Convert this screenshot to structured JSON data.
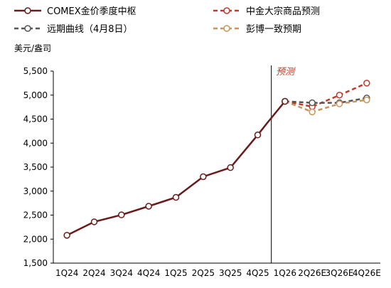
{
  "chart_data": {
    "type": "line",
    "ylabel": "美元/盎司",
    "ylim": [
      1500,
      5500
    ],
    "yticks": [
      1500,
      2000,
      2500,
      3000,
      3500,
      4000,
      4500,
      5000,
      5500
    ],
    "ytick_labels": [
      "1,500",
      "2,000",
      "2,500",
      "3,000",
      "3,500",
      "4,000",
      "4,500",
      "5,000",
      "5,500"
    ],
    "categories": [
      "1Q24",
      "2Q24",
      "3Q24",
      "4Q24",
      "1Q25",
      "2Q25",
      "3Q25",
      "4Q25",
      "1Q26",
      "2Q26E",
      "3Q26E",
      "4Q26E"
    ],
    "forecast_divider_after": "4Q25",
    "annotation": "预测",
    "legend_position": "top",
    "series": [
      {
        "name": "COMEX金价季度中枢",
        "color": "#6b1a1a",
        "style": "solid",
        "values": [
          2080,
          2360,
          2505,
          2685,
          2870,
          3300,
          3490,
          4170,
          4870,
          null,
          null,
          null
        ],
        "unmarked_points": [
          {
            "x": 7.35,
            "y": 4420
          }
        ]
      },
      {
        "name": "中金大宗商品预测",
        "color": "#c0392b",
        "style": "dashed",
        "values": [
          null,
          null,
          null,
          null,
          null,
          null,
          null,
          null,
          4870,
          4760,
          5000,
          5250
        ]
      },
      {
        "name": "远期曲线（4月8日）",
        "color": "#555555",
        "style": "dashed",
        "values": [
          null,
          null,
          null,
          null,
          null,
          null,
          null,
          null,
          4870,
          4840,
          4840,
          4940
        ]
      },
      {
        "name": "彭博一致预期",
        "color": "#c8955a",
        "style": "dashed",
        "values": [
          null,
          null,
          null,
          null,
          null,
          null,
          null,
          null,
          4870,
          4650,
          4820,
          4900
        ]
      }
    ]
  }
}
